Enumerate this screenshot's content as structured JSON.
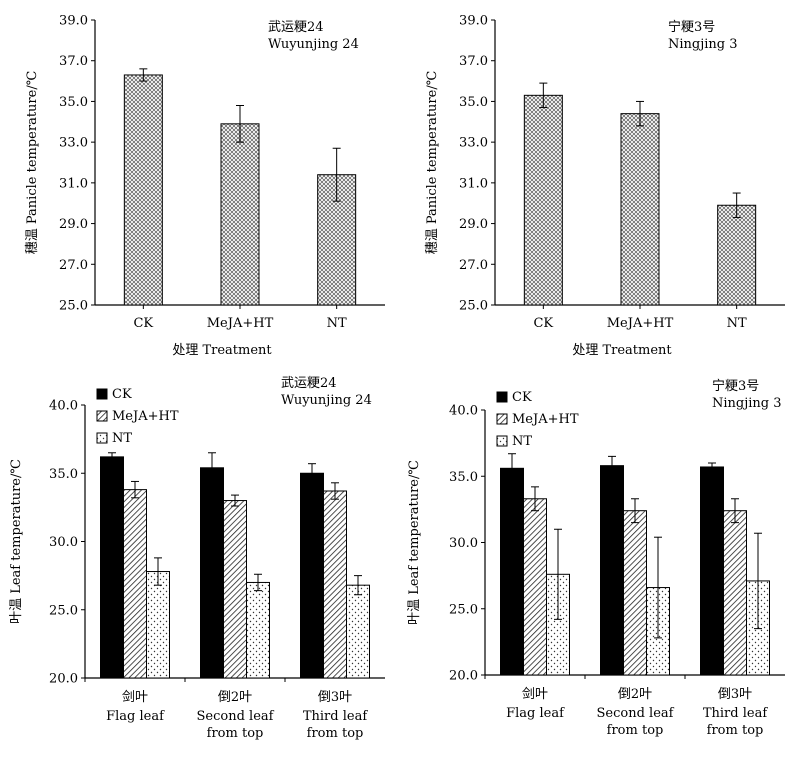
{
  "chart_data": [
    {
      "type": "bar",
      "title": "",
      "cultivar_cn": "武运粳24",
      "cultivar_en": "Wuyunjing 24",
      "ylabel": "穗温  Panicle temperature/℃",
      "xlabel": "处理 Treatment",
      "ylim": [
        25.0,
        39.0
      ],
      "yticks": [
        "25.0",
        "27.0",
        "29.0",
        "31.0",
        "33.0",
        "35.0",
        "37.0",
        "39.0"
      ],
      "categories": [
        "CK",
        "MeJA+HT",
        "NT"
      ],
      "values": [
        36.3,
        33.9,
        31.4
      ],
      "errors": [
        0.3,
        0.9,
        1.3
      ]
    },
    {
      "type": "bar",
      "title": "",
      "cultivar_cn": "宁粳3号",
      "cultivar_en": "Ningjing 3",
      "ylabel": "穗温  Panicle temperature/℃",
      "xlabel": "处理 Treatment",
      "ylim": [
        25.0,
        39.0
      ],
      "yticks": [
        "25.0",
        "27.0",
        "29.0",
        "31.0",
        "33.0",
        "35.0",
        "37.0",
        "39.0"
      ],
      "categories": [
        "CK",
        "MeJA+HT",
        "NT"
      ],
      "values": [
        35.3,
        34.4,
        29.9
      ],
      "errors": [
        0.6,
        0.6,
        0.6
      ]
    },
    {
      "type": "bar",
      "title": "",
      "cultivar_cn": "武运粳24",
      "cultivar_en": "Wuyunjing 24",
      "ylabel": "叶温  Leaf temperature/℃",
      "xlabel": "",
      "ylim": [
        20.0,
        40.0
      ],
      "yticks": [
        "20.0",
        "25.0",
        "30.0",
        "35.0",
        "40.0"
      ],
      "categories": [
        {
          "cn": "剑叶",
          "en1": "Flag leaf",
          "en2": ""
        },
        {
          "cn": "倒2叶",
          "en1": "Second leaf",
          "en2": "from top"
        },
        {
          "cn": "倒3叶",
          "en1": "Third leaf",
          "en2": "from top"
        }
      ],
      "series": [
        {
          "name": "CK",
          "values": [
            36.2,
            35.4,
            35.0
          ],
          "errors": [
            0.3,
            1.1,
            0.7
          ]
        },
        {
          "name": "MeJA+HT",
          "values": [
            33.8,
            33.0,
            33.7
          ],
          "errors": [
            0.6,
            0.4,
            0.6
          ]
        },
        {
          "name": "NT",
          "values": [
            27.8,
            27.0,
            26.8
          ],
          "errors": [
            1.0,
            0.6,
            0.7
          ]
        }
      ],
      "legend": "top-left"
    },
    {
      "type": "bar",
      "title": "",
      "cultivar_cn": "宁粳3号",
      "cultivar_en": "Ningjing 3",
      "ylabel": "叶温  Leaf temperature/℃",
      "xlabel": "",
      "ylim": [
        20.0,
        40.0
      ],
      "yticks": [
        "20.0",
        "25.0",
        "30.0",
        "35.0",
        "40.0"
      ],
      "categories": [
        {
          "cn": "剑叶",
          "en1": "Flag leaf",
          "en2": ""
        },
        {
          "cn": "倒2叶",
          "en1": "Second leaf",
          "en2": "from top"
        },
        {
          "cn": "倒3叶",
          "en1": "Third leaf",
          "en2": "from top"
        }
      ],
      "series": [
        {
          "name": "CK",
          "values": [
            35.6,
            35.8,
            35.7
          ],
          "errors": [
            1.1,
            0.7,
            0.3
          ]
        },
        {
          "name": "MeJA+HT",
          "values": [
            33.3,
            32.4,
            32.4
          ],
          "errors": [
            0.9,
            0.9,
            0.9
          ]
        },
        {
          "name": "NT",
          "values": [
            27.6,
            26.6,
            27.1
          ],
          "errors": [
            3.4,
            3.8,
            3.6
          ]
        }
      ],
      "legend": "top-left"
    }
  ]
}
